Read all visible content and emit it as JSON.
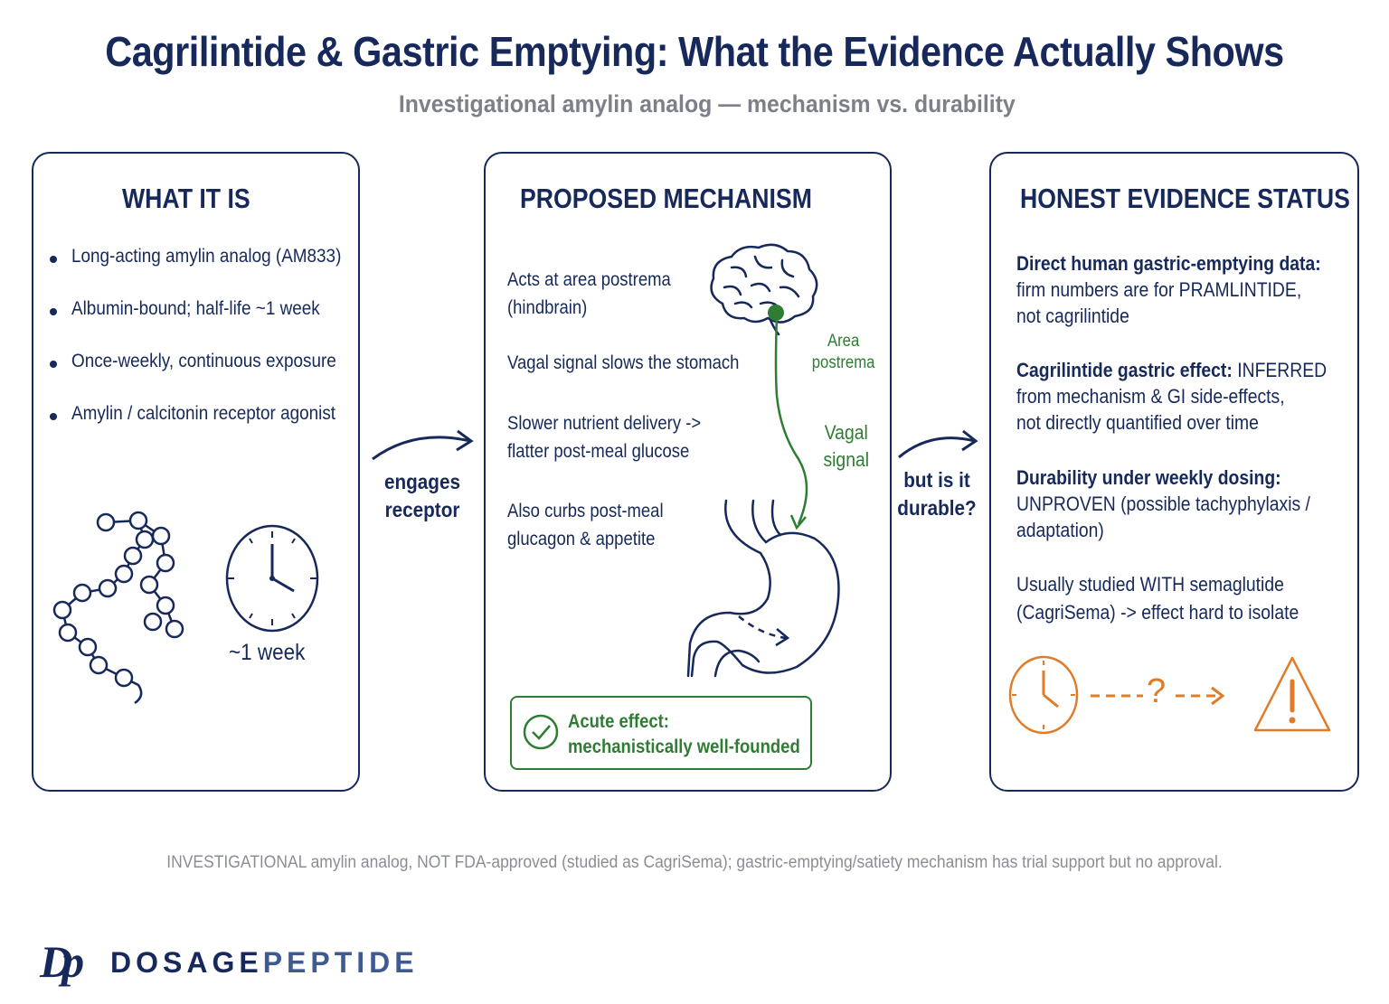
{
  "title": "Cagrilintide & Gastric Emptying: What the Evidence Actually Shows",
  "subtitle": "Investigational amylin analog — mechanism vs. durability",
  "panel1": {
    "heading": "WHAT IT IS",
    "bullets": [
      "Long-acting amylin analog (AM833)",
      "Albumin-bound; half-life ~1 week",
      "Once-weekly, continuous exposure",
      "Amylin / calcitonin receptor agonist"
    ],
    "clock_label": "~1 week"
  },
  "connector1": {
    "line1": "engages",
    "line2": "receptor"
  },
  "panel2": {
    "heading": "PROPOSED MECHANISM",
    "items": [
      {
        "line1": "Acts at area postrema",
        "line2": "(hindbrain)"
      },
      {
        "line1": "Vagal signal slows the stomach",
        "line2": ""
      },
      {
        "line1": "Slower nutrient delivery ->",
        "line2": "flatter post-meal glucose"
      },
      {
        "line1": "Also curbs post-meal",
        "line2": "glucagon & appetite"
      }
    ],
    "area_label_1": "Area",
    "area_label_2": "postrema",
    "vagal_label_1": "Vagal",
    "vagal_label_2": "signal",
    "acute_line1": "Acute effect:",
    "acute_line2": "mechanistically well-founded"
  },
  "connector2": {
    "line1": "but is it",
    "line2": "durable?"
  },
  "panel3": {
    "heading": "HONEST EVIDENCE STATUS",
    "block1": {
      "l1_bold": "Direct human gastric-emptying data:",
      "l2_pre": "firm numbers are for ",
      "l2_em": "PRAMLINTIDE,",
      "l3": "not cagrilintide"
    },
    "block2": {
      "l1_bold": "Cagrilintide gastric effect:",
      "l1_rest": " INFERRED",
      "l2": "from mechanism & GI side-effects,",
      "l3": "not directly quantified over time"
    },
    "block3": {
      "l1_bold": "Durability under weekly dosing:",
      "l2": "UNPROVEN (possible tachyphylaxis /",
      "l3": "adaptation)"
    },
    "block4": {
      "l1": "Usually studied WITH semaglutide",
      "l2": "(CagriSema) -> effect hard to isolate"
    },
    "question_mark": "?"
  },
  "footnote": "INVESTIGATIONAL amylin analog, NOT FDA-approved (studied as CagriSema); gastric-emptying/satiety mechanism has trial support but no approval.",
  "brand": {
    "mark": "Dp",
    "part1": "DOSAGE",
    "part2": "PEPTIDE"
  },
  "colors": {
    "navy": "#16295a",
    "green": "#2e7d32",
    "orange": "#e07b28",
    "gray": "#7b8089"
  }
}
